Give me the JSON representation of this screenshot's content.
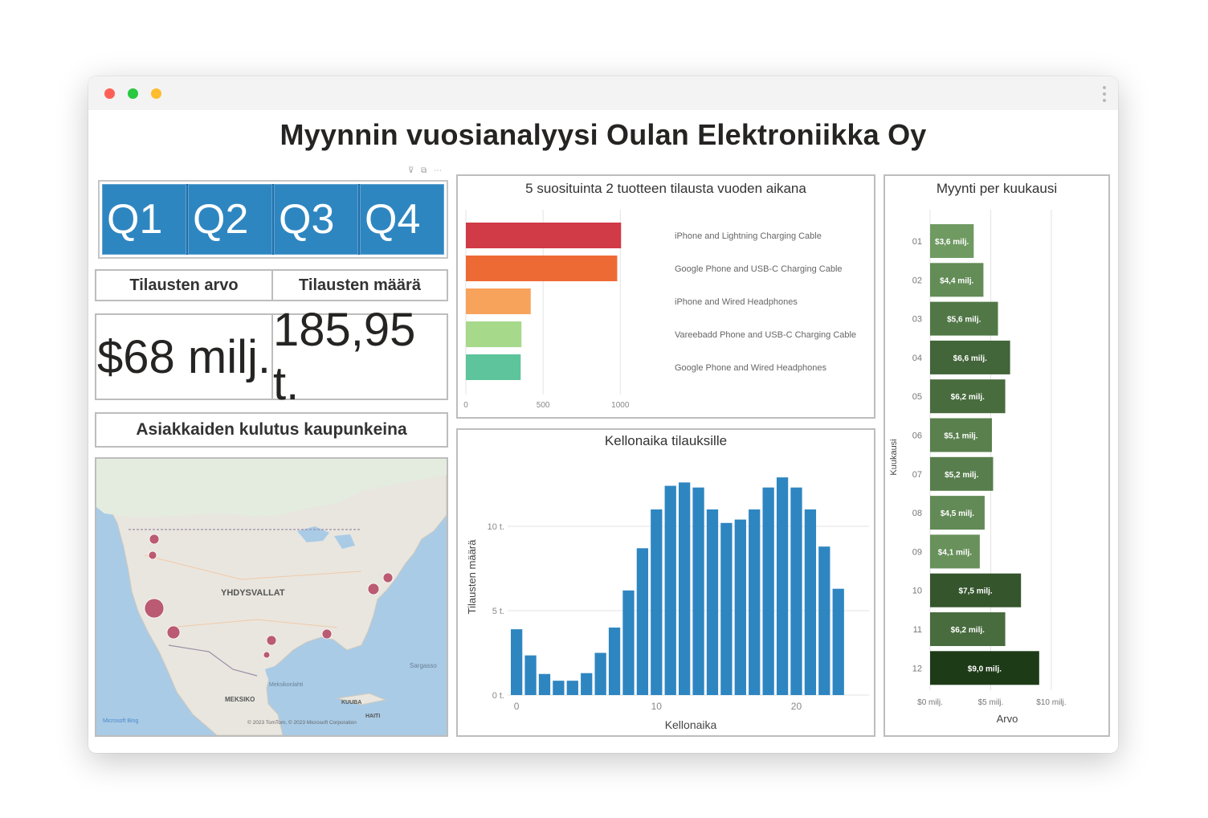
{
  "window": {
    "controls": [
      "close",
      "minimize",
      "maximize"
    ],
    "menu_icon": "kebab-menu-icon"
  },
  "report": {
    "title": "Myynnin vuosianalyysi Oulan Elektroniikka Oy"
  },
  "filters": {
    "icons": "⊽ ⧉ ⋯"
  },
  "quarters": {
    "items": [
      "Q1",
      "Q2",
      "Q3",
      "Q4"
    ],
    "color": "#2e86c1"
  },
  "kpis": {
    "value_label": "Tilausten arvo",
    "count_label": "Tilausten määrä",
    "value": "$68 milj.",
    "count": "185,95 t."
  },
  "map": {
    "title": "Asiakkaiden kulutus kaupunkeina",
    "country_label": "YHDYSVALLAT",
    "mexico_label": "MEKSIKO",
    "cuba_label": "KUUBA",
    "gulf_label": "Meksikonlahti",
    "haiti_label": "HAITI",
    "sea_label": "Sargasso",
    "brand": "Microsoft Bing",
    "copyright": "© 2023 TomTom, © 2023 Microsoft Corporation",
    "bubble_color": "#b03a5b"
  },
  "top_products": {
    "title": "5 suosituinta 2 tuotteen tilausta vuoden aikana",
    "axis_ticks": [
      "0",
      "500",
      "1000"
    ],
    "chart_data": {
      "type": "bar",
      "orientation": "horizontal",
      "categories": [
        "iPhone and Lightning Charging Cable",
        "Google Phone and USB-C Charging Cable",
        "iPhone and Wired Headphones",
        "Vareebadd Phone and USB-C Charging Cable",
        "Google Phone and Wired Headphones"
      ],
      "values": [
        1005,
        980,
        420,
        360,
        355
      ],
      "colors": [
        "#d13a47",
        "#ee6a35",
        "#f7a35c",
        "#a6d98a",
        "#5ec49b"
      ],
      "xlim": [
        0,
        1300
      ],
      "grid": true
    }
  },
  "hourly": {
    "title": "Kellonaika tilauksille",
    "xlabel": "Kellonaika",
    "ylabel": "Tilausten määrä",
    "y_ticks": [
      "0 t.",
      "5 t.",
      "10 t."
    ],
    "x_ticks": [
      "0",
      "10",
      "20"
    ],
    "chart_data": {
      "type": "bar",
      "x": [
        0,
        1,
        2,
        3,
        4,
        5,
        6,
        7,
        8,
        9,
        10,
        11,
        12,
        13,
        14,
        15,
        16,
        17,
        18,
        19,
        20,
        21,
        22,
        23
      ],
      "values": [
        3.9,
        2.35,
        1.25,
        0.85,
        0.85,
        1.3,
        2.5,
        4.0,
        6.2,
        8.7,
        11.0,
        12.4,
        12.6,
        12.3,
        11.0,
        10.2,
        10.4,
        11.0,
        12.3,
        12.9,
        12.3,
        11.0,
        8.8,
        6.3
      ],
      "ylim": [
        0,
        14
      ],
      "color": "#2e86c1",
      "grid": true
    }
  },
  "monthly": {
    "title": "Myynti per kuukausi",
    "xlabel": "Arvo",
    "ylabel": "Kuukausi",
    "x_ticks": [
      "$0 milj.",
      "$5 milj.",
      "$10 milj."
    ],
    "chart_data": {
      "type": "bar",
      "orientation": "horizontal",
      "categories": [
        "01",
        "02",
        "03",
        "04",
        "05",
        "06",
        "07",
        "08",
        "09",
        "10",
        "11",
        "12"
      ],
      "values": [
        3.6,
        4.4,
        5.6,
        6.6,
        6.2,
        5.1,
        5.2,
        4.5,
        4.1,
        7.5,
        6.2,
        9.0
      ],
      "labels": [
        "$3,6 milj.",
        "$4,4 milj.",
        "$5,6 milj.",
        "$6,6 milj.",
        "$6,2 milj.",
        "$5,1 milj.",
        "$5,2 milj.",
        "$4,5 milj.",
        "$4,1 milj.",
        "$7,5 milj.",
        "$6,2 milj.",
        "$9,0 milj."
      ],
      "xlim": [
        0,
        11
      ],
      "color_low": "#6f9a62",
      "color_high": "#1e3b18",
      "grid": true
    }
  }
}
